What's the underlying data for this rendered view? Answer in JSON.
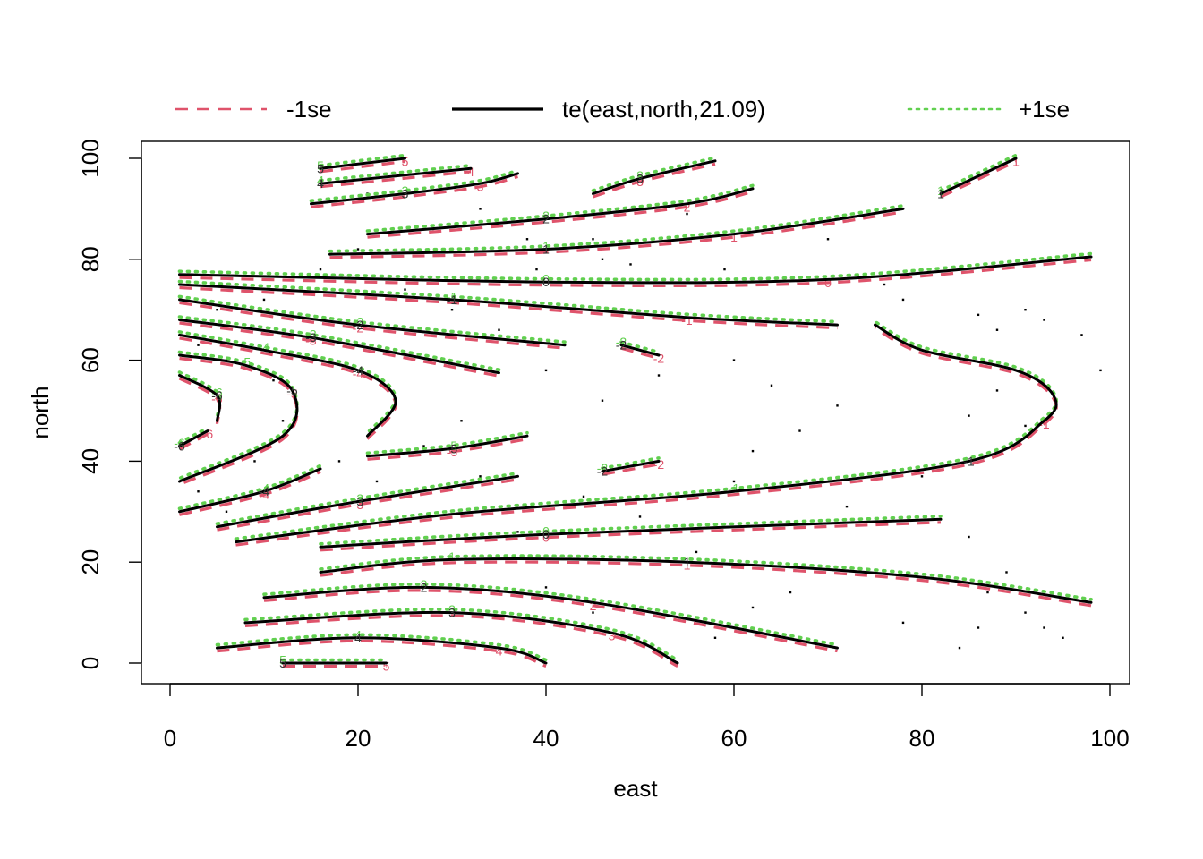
{
  "chart_data": {
    "type": "contour",
    "title": "",
    "xlabel": "east",
    "ylabel": "north",
    "xlim": [
      -7.5,
      102.5
    ],
    "ylim": [
      -4,
      104
    ],
    "xticks": [
      "0",
      "20",
      "40",
      "60",
      "80",
      "100"
    ],
    "xtick_values": [
      0,
      20,
      40,
      60,
      80,
      100
    ],
    "yticks": [
      "0",
      "20",
      "40",
      "60",
      "80",
      "100"
    ],
    "ytick_values": [
      0,
      20,
      40,
      60,
      80,
      100
    ],
    "legend": {
      "placement": "top",
      "items": [
        {
          "label": "-1se",
          "style": "dashed",
          "color": "#DF536B"
        },
        {
          "label": "te(east,north,21.09)",
          "style": "solid",
          "color": "#000000"
        },
        {
          "label": "+1se",
          "style": "dotted",
          "color": "#61D04F"
        }
      ]
    },
    "series": [
      {
        "label": "5",
        "points": [
          [
            16,
            98
          ],
          [
            25,
            100
          ]
        ]
      },
      {
        "label": "4",
        "points": [
          [
            16,
            95
          ],
          [
            32,
            98
          ]
        ]
      },
      {
        "label": "3",
        "points": [
          [
            15,
            91
          ],
          [
            25,
            93
          ],
          [
            33,
            95
          ],
          [
            37,
            97
          ]
        ]
      },
      {
        "label": "3",
        "points": [
          [
            45,
            93
          ],
          [
            50,
            96
          ],
          [
            58,
            99.5
          ]
        ]
      },
      {
        "label": "2",
        "points": [
          [
            21,
            85
          ],
          [
            40,
            88
          ],
          [
            55,
            91
          ],
          [
            62,
            94
          ]
        ]
      },
      {
        "label": "1",
        "points": [
          [
            17,
            81
          ],
          [
            40,
            82
          ],
          [
            60,
            85
          ],
          [
            78,
            90
          ]
        ]
      },
      {
        "label": "1",
        "points": [
          [
            82,
            93
          ],
          [
            90,
            100
          ]
        ]
      },
      {
        "label": "0",
        "points": [
          [
            1,
            77
          ],
          [
            40,
            75.5
          ],
          [
            70,
            76
          ],
          [
            98,
            80.5
          ]
        ]
      },
      {
        "label": "-1",
        "points": [
          [
            1,
            75
          ],
          [
            30,
            72
          ],
          [
            55,
            68.5
          ],
          [
            71,
            67
          ]
        ]
      },
      {
        "label": "-2",
        "points": [
          [
            1,
            72
          ],
          [
            20,
            67
          ],
          [
            42,
            63
          ]
        ]
      },
      {
        "label": "-3",
        "points": [
          [
            1,
            68
          ],
          [
            15,
            64.5
          ],
          [
            35,
            57.5
          ]
        ]
      },
      {
        "label": "-4",
        "points": [
          [
            1,
            65
          ],
          [
            10,
            62
          ],
          [
            20,
            58
          ],
          [
            24,
            52
          ],
          [
            21,
            45
          ]
        ]
      },
      {
        "label": "-5",
        "points": [
          [
            1,
            61
          ],
          [
            8,
            59
          ],
          [
            13,
            54
          ],
          [
            12,
            45
          ],
          [
            1,
            36
          ]
        ]
      },
      {
        "label": "-6",
        "points": [
          [
            1,
            57
          ],
          [
            5,
            53
          ],
          [
            5,
            48
          ]
        ]
      },
      {
        "label": "-6",
        "points": [
          [
            1,
            43
          ],
          [
            4,
            46
          ]
        ]
      },
      {
        "label": "-2",
        "points": [
          [
            48,
            63
          ],
          [
            52,
            61
          ]
        ]
      },
      {
        "label": "-5",
        "points": [
          [
            21,
            41
          ],
          [
            30,
            42.5
          ],
          [
            38,
            45
          ]
        ]
      },
      {
        "label": "-4",
        "points": [
          [
            1,
            30
          ],
          [
            10,
            34
          ],
          [
            16,
            38.5
          ]
        ]
      },
      {
        "label": "-3",
        "points": [
          [
            5,
            27
          ],
          [
            20,
            32
          ],
          [
            37,
            37
          ]
        ]
      },
      {
        "label": "-2",
        "points": [
          [
            46,
            38
          ],
          [
            52,
            40
          ]
        ]
      },
      {
        "label": "-1",
        "points": [
          [
            7,
            24
          ],
          [
            30,
            29.5
          ],
          [
            60,
            34
          ],
          [
            85,
            40
          ],
          [
            93,
            48
          ],
          [
            94,
            53
          ],
          [
            90,
            58
          ],
          [
            80,
            62
          ],
          [
            75,
            67
          ]
        ]
      },
      {
        "label": "0",
        "points": [
          [
            16,
            23
          ],
          [
            40,
            25.5
          ],
          [
            82,
            28.5
          ]
        ]
      },
      {
        "label": "1",
        "points": [
          [
            16,
            18
          ],
          [
            30,
            20.5
          ],
          [
            55,
            20
          ],
          [
            80,
            17
          ],
          [
            98,
            12
          ]
        ]
      },
      {
        "label": "2",
        "points": [
          [
            10,
            13
          ],
          [
            27,
            15
          ],
          [
            45,
            12
          ],
          [
            71,
            3
          ]
        ]
      },
      {
        "label": "3",
        "points": [
          [
            8,
            8
          ],
          [
            30,
            10
          ],
          [
            47,
            6
          ],
          [
            54,
            0
          ]
        ]
      },
      {
        "label": "4",
        "points": [
          [
            5,
            3
          ],
          [
            20,
            5
          ],
          [
            35,
            3
          ],
          [
            40,
            0
          ]
        ]
      },
      {
        "label": "5",
        "points": [
          [
            12,
            0
          ],
          [
            23,
            0
          ]
        ]
      }
    ],
    "data_points": [
      [
        21,
        93
      ],
      [
        28,
        86
      ],
      [
        33,
        90
      ],
      [
        38,
        84
      ],
      [
        39,
        78
      ],
      [
        45,
        84
      ],
      [
        46,
        80
      ],
      [
        49,
        79
      ],
      [
        55,
        89
      ],
      [
        59,
        78
      ],
      [
        70,
        84
      ],
      [
        76,
        75
      ],
      [
        78,
        72
      ],
      [
        86,
        69
      ],
      [
        88,
        66
      ],
      [
        91,
        70
      ],
      [
        93,
        68
      ],
      [
        97,
        65
      ],
      [
        99,
        58
      ],
      [
        88,
        54
      ],
      [
        85,
        49
      ],
      [
        91,
        47
      ],
      [
        80,
        37
      ],
      [
        72,
        31
      ],
      [
        75,
        28
      ],
      [
        85,
        25
      ],
      [
        89,
        18
      ],
      [
        87,
        14
      ],
      [
        91,
        10
      ],
      [
        93,
        7
      ],
      [
        95,
        5
      ],
      [
        86,
        7
      ],
      [
        84,
        3
      ],
      [
        78,
        8
      ],
      [
        66,
        14
      ],
      [
        62,
        11
      ],
      [
        58,
        5
      ],
      [
        48,
        5
      ],
      [
        45,
        10
      ],
      [
        40,
        15
      ],
      [
        37,
        26
      ],
      [
        28,
        21
      ],
      [
        22,
        36
      ],
      [
        18,
        40
      ],
      [
        12,
        48
      ],
      [
        11,
        56
      ],
      [
        6,
        60
      ],
      [
        3,
        63
      ],
      [
        5,
        70
      ],
      [
        10,
        72
      ],
      [
        12,
        74
      ],
      [
        16,
        78
      ],
      [
        20,
        82
      ],
      [
        9,
        40
      ],
      [
        3,
        34
      ],
      [
        6,
        30
      ],
      [
        31,
        48
      ],
      [
        27,
        43
      ],
      [
        33,
        37
      ],
      [
        44,
        33
      ],
      [
        50,
        29
      ],
      [
        56,
        22
      ],
      [
        60,
        36
      ],
      [
        62,
        42
      ],
      [
        67,
        46
      ],
      [
        71,
        51
      ],
      [
        64,
        55
      ],
      [
        60,
        60
      ],
      [
        52,
        57
      ],
      [
        46,
        52
      ],
      [
        40,
        58
      ],
      [
        35,
        66
      ],
      [
        30,
        70
      ],
      [
        25,
        74
      ]
    ]
  }
}
